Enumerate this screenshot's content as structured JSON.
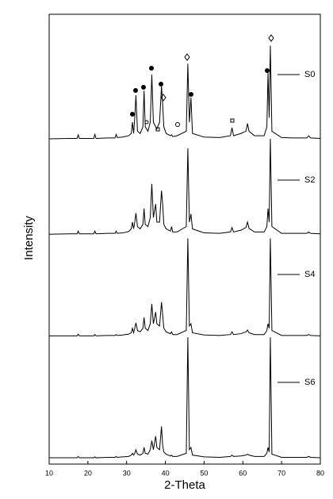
{
  "chart_data": {
    "type": "line",
    "xlabel": "2-Theta",
    "ylabel": "Intensity",
    "xlim": [
      10,
      80
    ],
    "xticks": [
      10,
      20,
      30,
      40,
      50,
      60,
      70,
      80
    ],
    "ylim": [
      0,
      100
    ],
    "x": [
      10,
      15,
      17.2,
      17.5,
      17.8,
      21.5,
      21.8,
      22.1,
      25,
      27,
      27.3,
      27.6,
      29,
      30.5,
      31.2,
      31.5,
      31.8,
      32.1,
      32.4,
      32.8,
      33.5,
      34.2,
      34.5,
      34.8,
      35.5,
      36.1,
      36.5,
      36.9,
      37.5,
      37.8,
      38.5,
      39.0,
      39.3,
      39.6,
      40.2,
      41.3,
      41.6,
      41.9,
      43,
      45.4,
      45.8,
      46.2,
      46.6,
      47.0,
      50,
      54,
      56.8,
      57.2,
      57.6,
      59.5,
      60.8,
      61.2,
      61.6,
      63,
      65.5,
      66.2,
      66.5,
      66.8,
      67.1,
      67.5,
      70,
      73,
      76.5,
      77,
      77.5,
      80
    ],
    "series": [
      {
        "name": "S0",
        "color": "#000000",
        "values": [
          0.3,
          0.4,
          0.4,
          1.2,
          0.4,
          0.4,
          1.3,
          0.4,
          0.5,
          0.5,
          1.3,
          0.6,
          0.7,
          1,
          1.5,
          4,
          1.5,
          5,
          10,
          2,
          1.5,
          3,
          11,
          3,
          2,
          4,
          14.6,
          4,
          3,
          2.5,
          4,
          12,
          8,
          3,
          1.5,
          1,
          1.2,
          0.8,
          1,
          2,
          17,
          4,
          9.5,
          1.5,
          0.7,
          0.6,
          1,
          2.8,
          1,
          1.5,
          2,
          3.7,
          2,
          1,
          1,
          3,
          15,
          5,
          21,
          2,
          0.6,
          0.5,
          0.5,
          1,
          0.5,
          0.4
        ]
      },
      {
        "name": "S2",
        "color": "#000000",
        "values": [
          0.3,
          0.4,
          0.4,
          1,
          0.4,
          0.4,
          1,
          0.4,
          0.5,
          0.5,
          1,
          0.5,
          0.6,
          0.9,
          1.5,
          3,
          1.5,
          3,
          5,
          2,
          1.5,
          2.5,
          6,
          2.5,
          2,
          4,
          11.5,
          4,
          7,
          3,
          3,
          10,
          7,
          2.5,
          1.5,
          1,
          2,
          0.8,
          0.8,
          2,
          19.4,
          3,
          4.8,
          1.5,
          0.6,
          0.5,
          0.8,
          1.8,
          0.8,
          1.2,
          1.8,
          3,
          1.6,
          0.8,
          0.8,
          2,
          6,
          3,
          21.5,
          2,
          0.5,
          0.5,
          0.5,
          0.8,
          0.5,
          0.4
        ]
      },
      {
        "name": "S4",
        "color": "#000000",
        "values": [
          0.3,
          0.3,
          0.3,
          0.7,
          0.3,
          0.3,
          0.6,
          0.3,
          0.4,
          0.4,
          0.6,
          0.4,
          0.5,
          0.7,
          1,
          2,
          1,
          2,
          3.2,
          1.5,
          1.2,
          2,
          4.4,
          2,
          1.5,
          3,
          7.4,
          3,
          5.6,
          3,
          2.5,
          7.8,
          5,
          2,
          1.2,
          0.8,
          1.2,
          0.6,
          0.6,
          1.5,
          22,
          2.5,
          3,
          1,
          0.5,
          0.4,
          0.6,
          1.2,
          0.6,
          0.8,
          1.2,
          1.6,
          1,
          0.6,
          0.6,
          1.5,
          3,
          2,
          22,
          1.5,
          0.4,
          0.4,
          0.4,
          0.6,
          0.4,
          0.3
        ]
      },
      {
        "name": "S6",
        "color": "#000000",
        "values": [
          0.2,
          0.2,
          0.2,
          0.5,
          0.2,
          0.2,
          0.4,
          0.2,
          0.3,
          0.3,
          0.5,
          0.3,
          0.4,
          0.5,
          0.8,
          1.2,
          0.8,
          1.2,
          2,
          1,
          0.8,
          1.2,
          2.5,
          1.2,
          1,
          2,
          4,
          2,
          5,
          2.5,
          2,
          7.2,
          3,
          1.5,
          1,
          0.6,
          0.8,
          0.5,
          0.5,
          1.2,
          27,
          2,
          2.5,
          0.8,
          0.4,
          0.3,
          0.5,
          0.8,
          0.5,
          0.6,
          0.8,
          1,
          0.8,
          0.5,
          0.5,
          1.2,
          2.5,
          1.5,
          27,
          1,
          0.3,
          0.3,
          0.3,
          0.5,
          0.3,
          0.2
        ]
      }
    ]
  }
}
